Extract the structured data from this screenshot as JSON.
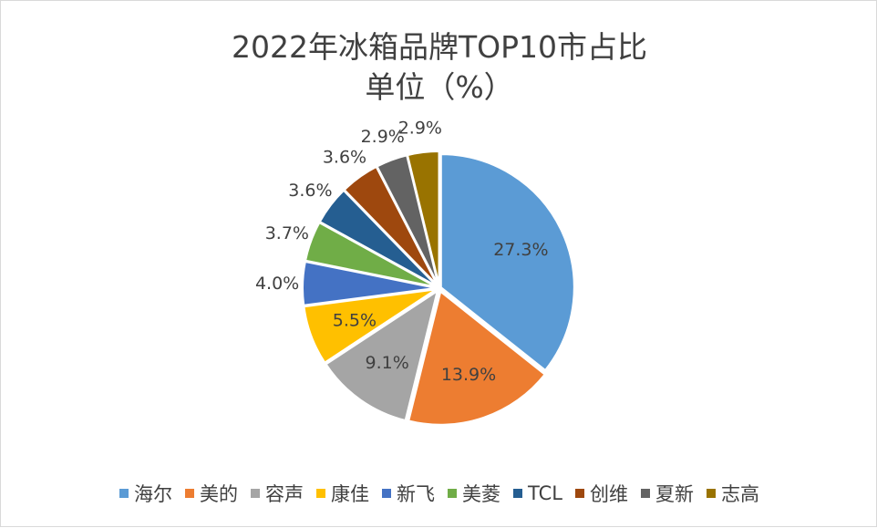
{
  "chart_data": {
    "type": "pie",
    "title": "2022年冰箱品牌TOP10市占比",
    "subtitle": "单位（%）",
    "categories": [
      "海尔",
      "美的",
      "容声",
      "康佳",
      "新飞",
      "美菱",
      "TCL",
      "创维",
      "夏新",
      "志高"
    ],
    "values": [
      27.3,
      13.9,
      9.1,
      5.5,
      4.0,
      3.7,
      3.6,
      3.6,
      2.9,
      2.9
    ],
    "labels": [
      "27.3%",
      "13.9%",
      "9.1%",
      "5.5%",
      "4.0%",
      "3.7%",
      "3.6%",
      "3.6%",
      "2.9%",
      "2.9%"
    ],
    "colors": [
      "#5B9BD5",
      "#ED7D31",
      "#A5A5A5",
      "#FFC000",
      "#4472C4",
      "#70AD47",
      "#255E91",
      "#9E480E",
      "#636363",
      "#997300"
    ],
    "legend_position": "bottom"
  }
}
